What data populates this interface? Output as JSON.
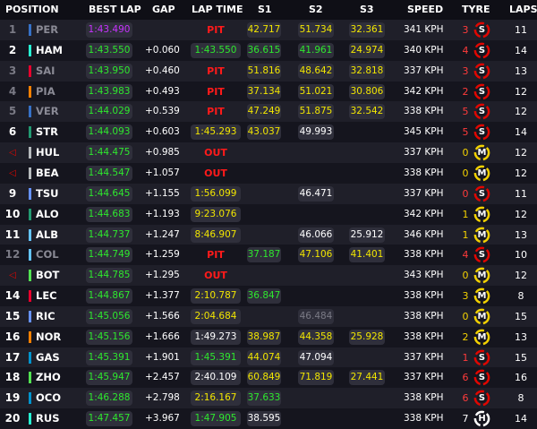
{
  "colors": {
    "purple": "#c832ff",
    "green": "#2ee82e",
    "yellow": "#f2e600",
    "white": "#ffffff",
    "grey": "#7a7a85",
    "red": "#e10600",
    "soft": "#e10600",
    "medium": "#f2d100",
    "hard": "#ffffff"
  },
  "headers": {
    "position": "POSITION",
    "best_lap": "BEST LAP",
    "gap": "GAP",
    "lap_time": "LAP TIME",
    "s1": "S1",
    "s2": "S2",
    "s3": "S3",
    "speed": "SPEED",
    "tyre": "TYRE",
    "laps": "LAPS"
  },
  "rows": [
    {
      "pos": "1",
      "pos_dim": true,
      "team": "#3671c6",
      "driver": "PER",
      "drv_dim": true,
      "best": "1:43.490",
      "best_c": "purple",
      "gap": "",
      "lap": "PIT",
      "lap_c": "pit",
      "s1": "42.717",
      "s1_c": "yellow",
      "s2": "51.734",
      "s2_c": "yellow",
      "s3": "32.361",
      "s3_c": "yellow",
      "speed": "341 KPH",
      "tyre_n": "3",
      "tyre": "S",
      "tyre_c": "soft",
      "laps": "11"
    },
    {
      "pos": "2",
      "pos_dim": false,
      "team": "#27f4d2",
      "driver": "HAM",
      "drv_dim": false,
      "best": "1:43.550",
      "best_c": "green",
      "gap": "+0.060",
      "lap": "1:43.550",
      "lap_c": "green",
      "s1": "36.615",
      "s1_c": "green",
      "s2": "41.961",
      "s2_c": "green",
      "s3": "24.974",
      "s3_c": "yellow",
      "speed": "340 KPH",
      "tyre_n": "4",
      "tyre": "S",
      "tyre_c": "soft",
      "laps": "14"
    },
    {
      "pos": "3",
      "pos_dim": true,
      "team": "#e8002d",
      "driver": "SAI",
      "drv_dim": true,
      "best": "1:43.950",
      "best_c": "green",
      "gap": "+0.460",
      "lap": "PIT",
      "lap_c": "pit",
      "s1": "51.816",
      "s1_c": "yellow",
      "s2": "48.642",
      "s2_c": "yellow",
      "s3": "32.818",
      "s3_c": "yellow",
      "speed": "337 KPH",
      "tyre_n": "3",
      "tyre": "S",
      "tyre_c": "soft",
      "laps": "13"
    },
    {
      "pos": "4",
      "pos_dim": true,
      "team": "#ff8000",
      "driver": "PIA",
      "drv_dim": true,
      "best": "1:43.983",
      "best_c": "green",
      "gap": "+0.493",
      "lap": "PIT",
      "lap_c": "pit",
      "s1": "37.134",
      "s1_c": "yellow",
      "s2": "51.021",
      "s2_c": "yellow",
      "s3": "30.806",
      "s3_c": "yellow",
      "speed": "342 KPH",
      "tyre_n": "2",
      "tyre": "S",
      "tyre_c": "soft",
      "laps": "12"
    },
    {
      "pos": "5",
      "pos_dim": true,
      "team": "#3671c6",
      "driver": "VER",
      "drv_dim": true,
      "best": "1:44.029",
      "best_c": "green",
      "gap": "+0.539",
      "lap": "PIT",
      "lap_c": "pit",
      "s1": "47.249",
      "s1_c": "yellow",
      "s2": "51.875",
      "s2_c": "yellow",
      "s3": "32.542",
      "s3_c": "yellow",
      "speed": "338 KPH",
      "tyre_n": "5",
      "tyre": "S",
      "tyre_c": "soft",
      "laps": "12"
    },
    {
      "pos": "6",
      "pos_dim": false,
      "team": "#229971",
      "driver": "STR",
      "drv_dim": false,
      "best": "1:44.093",
      "best_c": "green",
      "gap": "+0.603",
      "lap": "1:45.293",
      "lap_c": "yellow",
      "s1": "43.037",
      "s1_c": "yellow",
      "s2": "49.993",
      "s2_c": "white",
      "s3": "",
      "s3_c": "",
      "speed": "345 KPH",
      "tyre_n": "5",
      "tyre": "S",
      "tyre_c": "soft",
      "laps": "14"
    },
    {
      "pos": "OUT",
      "pos_dim": false,
      "team": "#b6babd",
      "driver": "HUL",
      "drv_dim": false,
      "best": "1:44.475",
      "best_c": "green",
      "gap": "+0.985",
      "lap": "OUT",
      "lap_c": "pit",
      "s1": "",
      "s1_c": "",
      "s2": "",
      "s2_c": "",
      "s3": "",
      "s3_c": "",
      "speed": "337 KPH",
      "tyre_n": "0",
      "tyre": "M",
      "tyre_c": "medium",
      "laps": "12"
    },
    {
      "pos": "OUT",
      "pos_dim": false,
      "team": "#b6babd",
      "driver": "BEA",
      "drv_dim": false,
      "best": "1:44.547",
      "best_c": "green",
      "gap": "+1.057",
      "lap": "OUT",
      "lap_c": "pit",
      "s1": "",
      "s1_c": "",
      "s2": "",
      "s2_c": "",
      "s3": "",
      "s3_c": "",
      "speed": "338 KPH",
      "tyre_n": "0",
      "tyre": "M",
      "tyre_c": "medium",
      "laps": "12"
    },
    {
      "pos": "9",
      "pos_dim": false,
      "team": "#6692ff",
      "driver": "TSU",
      "drv_dim": false,
      "best": "1:44.645",
      "best_c": "green",
      "gap": "+1.155",
      "lap": "1:56.099",
      "lap_c": "yellow",
      "s1": "",
      "s1_c": "",
      "s2": "46.471",
      "s2_c": "white",
      "s3": "",
      "s3_c": "",
      "speed": "337 KPH",
      "tyre_n": "0",
      "tyre": "S",
      "tyre_c": "soft",
      "laps": "11"
    },
    {
      "pos": "10",
      "pos_dim": false,
      "team": "#229971",
      "driver": "ALO",
      "drv_dim": false,
      "best": "1:44.683",
      "best_c": "green",
      "gap": "+1.193",
      "lap": "9:23.076",
      "lap_c": "yellow",
      "s1": "",
      "s1_c": "",
      "s2": "",
      "s2_c": "",
      "s3": "",
      "s3_c": "",
      "speed": "342 KPH",
      "tyre_n": "1",
      "tyre": "M",
      "tyre_c": "medium",
      "laps": "12"
    },
    {
      "pos": "11",
      "pos_dim": false,
      "team": "#64c4ff",
      "driver": "ALB",
      "drv_dim": false,
      "best": "1:44.737",
      "best_c": "green",
      "gap": "+1.247",
      "lap": "8:46.907",
      "lap_c": "yellow",
      "s1": "",
      "s1_c": "",
      "s2": "46.066",
      "s2_c": "white",
      "s3": "25.912",
      "s3_c": "white",
      "speed": "346 KPH",
      "tyre_n": "1",
      "tyre": "M",
      "tyre_c": "medium",
      "laps": "13"
    },
    {
      "pos": "12",
      "pos_dim": true,
      "team": "#64c4ff",
      "driver": "COL",
      "drv_dim": true,
      "best": "1:44.749",
      "best_c": "green",
      "gap": "+1.259",
      "lap": "PIT",
      "lap_c": "pit",
      "s1": "37.187",
      "s1_c": "green",
      "s2": "47.106",
      "s2_c": "yellow",
      "s3": "41.401",
      "s3_c": "yellow",
      "speed": "338 KPH",
      "tyre_n": "4",
      "tyre": "S",
      "tyre_c": "soft",
      "laps": "10"
    },
    {
      "pos": "OUT",
      "pos_dim": false,
      "team": "#52e252",
      "driver": "BOT",
      "drv_dim": false,
      "best": "1:44.785",
      "best_c": "green",
      "gap": "+1.295",
      "lap": "OUT",
      "lap_c": "pit",
      "s1": "",
      "s1_c": "",
      "s2": "",
      "s2_c": "",
      "s3": "",
      "s3_c": "",
      "speed": "343 KPH",
      "tyre_n": "0",
      "tyre": "M",
      "tyre_c": "medium",
      "laps": "12"
    },
    {
      "pos": "14",
      "pos_dim": false,
      "team": "#e8002d",
      "driver": "LEC",
      "drv_dim": false,
      "best": "1:44.867",
      "best_c": "green",
      "gap": "+1.377",
      "lap": "2:10.787",
      "lap_c": "yellow",
      "s1": "36.847",
      "s1_c": "green",
      "s2": "",
      "s2_c": "",
      "s3": "",
      "s3_c": "",
      "speed": "338 KPH",
      "tyre_n": "3",
      "tyre": "M",
      "tyre_c": "medium",
      "laps": "8"
    },
    {
      "pos": "15",
      "pos_dim": false,
      "team": "#6692ff",
      "driver": "RIC",
      "drv_dim": false,
      "best": "1:45.056",
      "best_c": "green",
      "gap": "+1.566",
      "lap": "2:04.684",
      "lap_c": "yellow",
      "s1": "",
      "s1_c": "",
      "s2": "46.484",
      "s2_c": "grey",
      "s3": "",
      "s3_c": "",
      "speed": "338 KPH",
      "tyre_n": "0",
      "tyre": "M",
      "tyre_c": "medium",
      "laps": "15"
    },
    {
      "pos": "16",
      "pos_dim": false,
      "team": "#ff8000",
      "driver": "NOR",
      "drv_dim": false,
      "best": "1:45.156",
      "best_c": "green",
      "gap": "+1.666",
      "lap": "1:49.273",
      "lap_c": "white",
      "s1": "38.987",
      "s1_c": "yellow",
      "s2": "44.358",
      "s2_c": "yellow",
      "s3": "25.928",
      "s3_c": "yellow",
      "speed": "338 KPH",
      "tyre_n": "2",
      "tyre": "M",
      "tyre_c": "medium",
      "laps": "13"
    },
    {
      "pos": "17",
      "pos_dim": false,
      "team": "#0093cc",
      "driver": "GAS",
      "drv_dim": false,
      "best": "1:45.391",
      "best_c": "green",
      "gap": "+1.901",
      "lap": "1:45.391",
      "lap_c": "green",
      "s1": "44.074",
      "s1_c": "yellow",
      "s2": "47.094",
      "s2_c": "white",
      "s3": "",
      "s3_c": "",
      "speed": "337 KPH",
      "tyre_n": "1",
      "tyre": "S",
      "tyre_c": "soft",
      "laps": "15"
    },
    {
      "pos": "18",
      "pos_dim": false,
      "team": "#52e252",
      "driver": "ZHO",
      "drv_dim": false,
      "best": "1:45.947",
      "best_c": "green",
      "gap": "+2.457",
      "lap": "2:40.109",
      "lap_c": "white",
      "s1": "60.849",
      "s1_c": "yellow",
      "s2": "71.819",
      "s2_c": "yellow",
      "s3": "27.441",
      "s3_c": "yellow",
      "speed": "337 KPH",
      "tyre_n": "6",
      "tyre": "S",
      "tyre_c": "soft",
      "laps": "16"
    },
    {
      "pos": "19",
      "pos_dim": false,
      "team": "#0093cc",
      "driver": "OCO",
      "drv_dim": false,
      "best": "1:46.288",
      "best_c": "green",
      "gap": "+2.798",
      "lap": "2:16.167",
      "lap_c": "yellow",
      "s1": "37.633",
      "s1_c": "green",
      "s2": "",
      "s2_c": "",
      "s3": "",
      "s3_c": "",
      "speed": "338 KPH",
      "tyre_n": "6",
      "tyre": "S",
      "tyre_c": "soft",
      "laps": "8"
    },
    {
      "pos": "20",
      "pos_dim": false,
      "team": "#27f4d2",
      "driver": "RUS",
      "drv_dim": false,
      "best": "1:47.457",
      "best_c": "green",
      "gap": "+3.967",
      "lap": "1:47.905",
      "lap_c": "green",
      "s1": "38.595",
      "s1_c": "white",
      "s2": "",
      "s2_c": "",
      "s3": "",
      "s3_c": "",
      "speed": "338 KPH",
      "tyre_n": "7",
      "tyre": "H",
      "tyre_c": "hard",
      "laps": "14"
    }
  ]
}
